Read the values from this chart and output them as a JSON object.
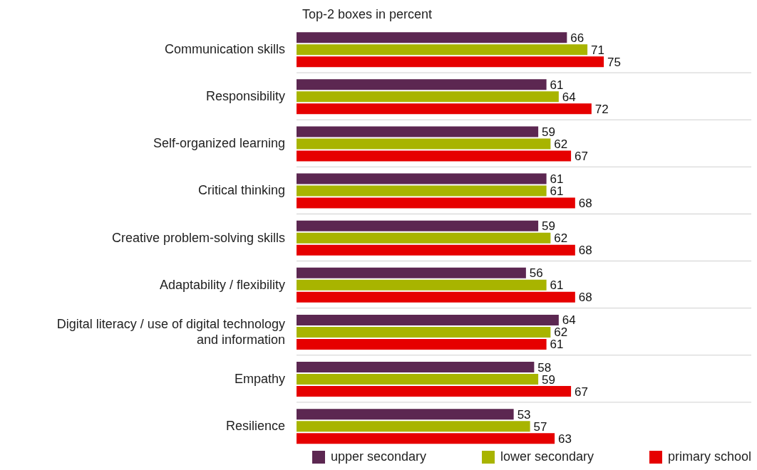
{
  "chart_data": {
    "type": "bar",
    "orientation": "horizontal",
    "title": "Top-2 boxes in percent",
    "categories": [
      "Communication skills",
      "Responsibility",
      "Self-organized learning",
      "Critical thinking",
      "Creative problem-solving skills",
      "Adaptability / flexibility",
      "Digital literacy / use of digital technology and information",
      "Empathy",
      "Resilience"
    ],
    "series": [
      {
        "name": "upper secondary",
        "color": "#5c2751",
        "values": [
          66,
          61,
          59,
          61,
          59,
          56,
          64,
          58,
          53
        ]
      },
      {
        "name": "lower secondary",
        "color": "#a8b400",
        "values": [
          71,
          64,
          62,
          61,
          62,
          61,
          62,
          59,
          57
        ]
      },
      {
        "name": "primary school",
        "color": "#e60000",
        "values": [
          75,
          72,
          67,
          68,
          68,
          68,
          61,
          67,
          63
        ]
      }
    ],
    "data_labels": true,
    "grid": "y",
    "legend": "bottom"
  }
}
